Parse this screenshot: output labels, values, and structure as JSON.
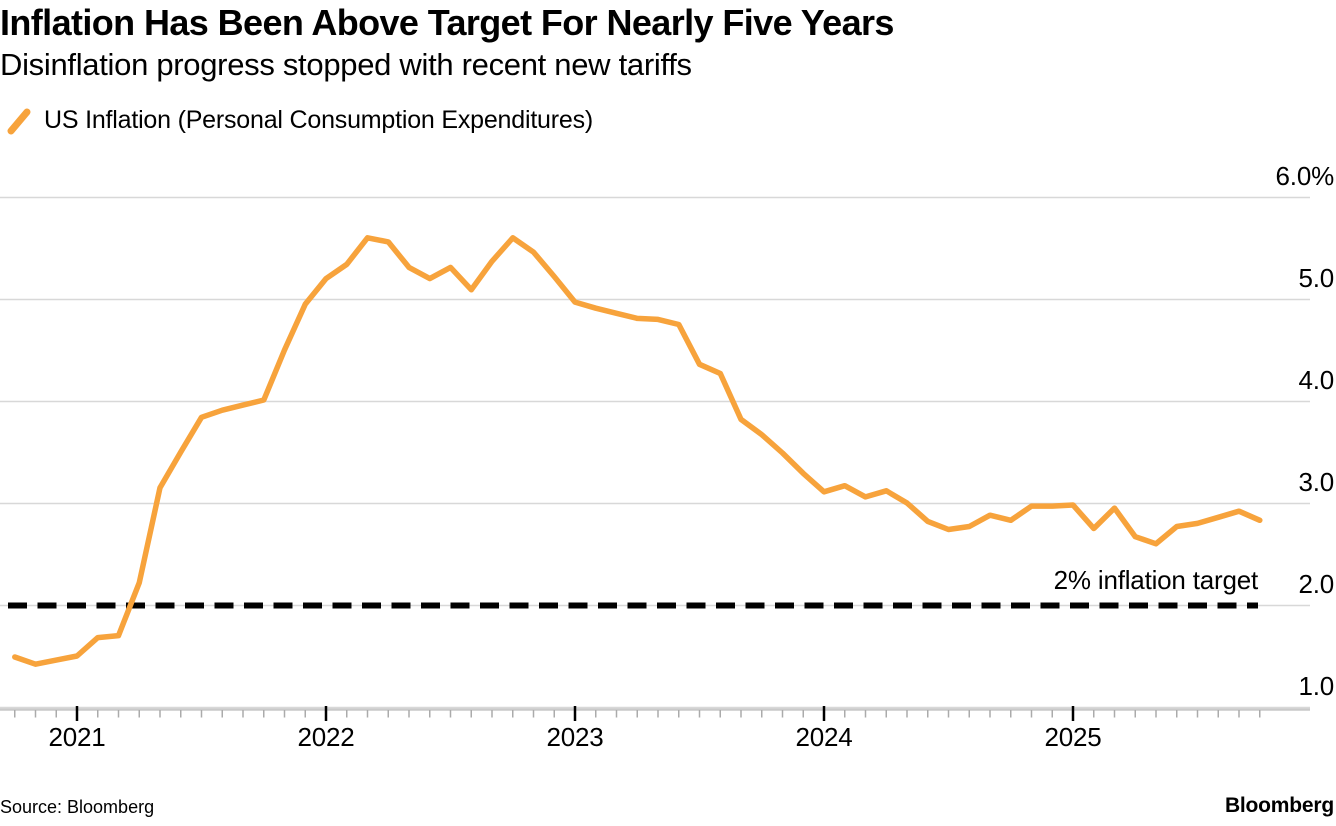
{
  "header": {
    "title": "Inflation Has Been Above Target For Nearly Five Years",
    "subtitle": "Disinflation progress stopped with recent new tariffs"
  },
  "legend": {
    "label": "US Inflation (Personal Consumption Expenditures)",
    "marker": "slash-icon",
    "marker_color": "#F7A33C"
  },
  "annotation": {
    "target_label": "2% inflation target"
  },
  "footer": {
    "source": "Source: Bloomberg",
    "brand": "Bloomberg"
  },
  "chart_data": {
    "type": "line",
    "title": "Inflation Has Been Above Target For Nearly Five Years",
    "subtitle": "Disinflation progress stopped with recent new tariffs",
    "series_name": "US Inflation (Personal Consumption Expenditures)",
    "unit": "percent, year-over-year",
    "frequency": "monthly",
    "line_color": "#F7A33C",
    "grid": true,
    "legend_position": "top-left",
    "ylim": [
      1.0,
      6.0
    ],
    "x": [
      "2020-10",
      "2020-11",
      "2020-12",
      "2021-01",
      "2021-02",
      "2021-03",
      "2021-04",
      "2021-05",
      "2021-06",
      "2021-07",
      "2021-08",
      "2021-09",
      "2021-10",
      "2021-11",
      "2021-12",
      "2022-01",
      "2022-02",
      "2022-03",
      "2022-04",
      "2022-05",
      "2022-06",
      "2022-07",
      "2022-08",
      "2022-09",
      "2022-10",
      "2022-11",
      "2022-12",
      "2023-01",
      "2023-02",
      "2023-03",
      "2023-04",
      "2023-05",
      "2023-06",
      "2023-07",
      "2023-08",
      "2023-09",
      "2023-10",
      "2023-11",
      "2023-12",
      "2024-01",
      "2024-02",
      "2024-03",
      "2024-04",
      "2024-05",
      "2024-06",
      "2024-07",
      "2024-08",
      "2024-09",
      "2024-10",
      "2024-11",
      "2024-12",
      "2025-01",
      "2025-02",
      "2025-03",
      "2025-04",
      "2025-05",
      "2025-06",
      "2025-07",
      "2025-08",
      "2025-09",
      "2025-10"
    ],
    "values": [
      1.49,
      1.42,
      1.46,
      1.5,
      1.68,
      1.7,
      2.22,
      3.15,
      3.5,
      3.84,
      3.91,
      3.96,
      4.01,
      4.5,
      4.95,
      5.2,
      5.34,
      5.6,
      5.56,
      5.31,
      5.2,
      5.31,
      5.09,
      5.37,
      5.6,
      5.46,
      5.22,
      4.97,
      4.91,
      4.86,
      4.81,
      4.8,
      4.75,
      4.36,
      4.27,
      3.82,
      3.67,
      3.49,
      3.29,
      3.11,
      3.17,
      3.06,
      3.12,
      3.0,
      2.82,
      2.74,
      2.77,
      2.88,
      2.83,
      2.97,
      2.97,
      2.98,
      2.75,
      2.95,
      2.67,
      2.6,
      2.77,
      2.8,
      2.86,
      2.92,
      2.83
    ],
    "y_ticks": [
      {
        "value": 6,
        "label": "6.0%"
      },
      {
        "value": 5,
        "label": "5.0"
      },
      {
        "value": 4,
        "label": "4.0"
      },
      {
        "value": 3,
        "label": "3.0"
      },
      {
        "value": 2,
        "label": "2.0"
      },
      {
        "value": 1,
        "label": "1.0"
      }
    ],
    "x_ticks": [
      "2021",
      "2022",
      "2023",
      "2024",
      "2025"
    ],
    "reference_line": {
      "value": 2.0,
      "label": "2% inflation target",
      "style": "dashed",
      "color": "#000000"
    }
  }
}
